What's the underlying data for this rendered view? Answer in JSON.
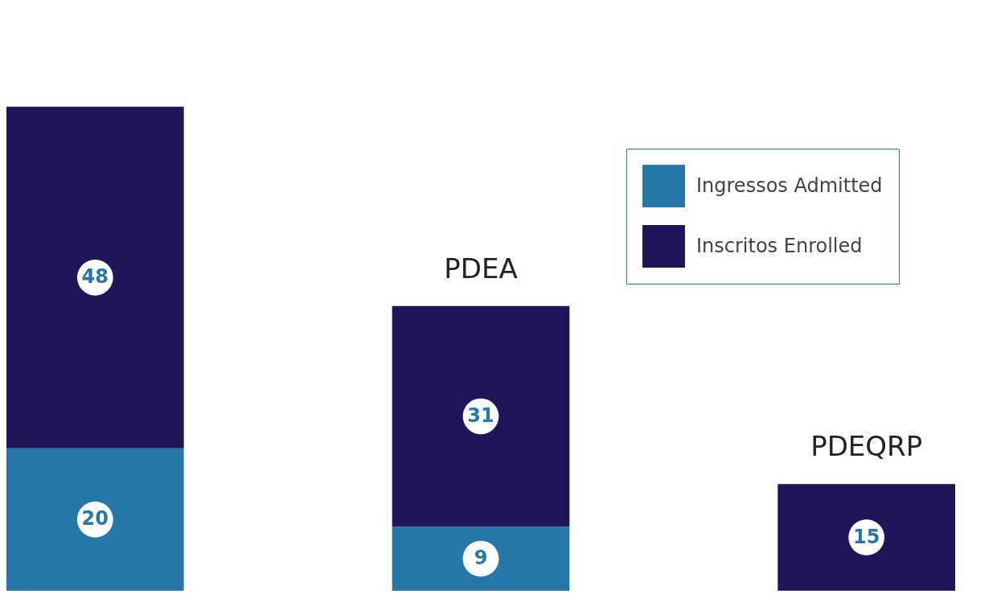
{
  "chart_data": {
    "type": "bar",
    "stacked": true,
    "data_labels": true,
    "tick_labels": false,
    "legend": "top right",
    "categories": [
      null,
      "PDEA",
      "PDEQRP"
    ],
    "series": [
      {
        "name": "Ingressos Admitted",
        "color": "#2778a9",
        "values": [
          20,
          9,
          null
        ]
      },
      {
        "name": "Inscritos Enrolled",
        "color": "#1e1658",
        "values": [
          48,
          31,
          15
        ]
      }
    ]
  }
}
